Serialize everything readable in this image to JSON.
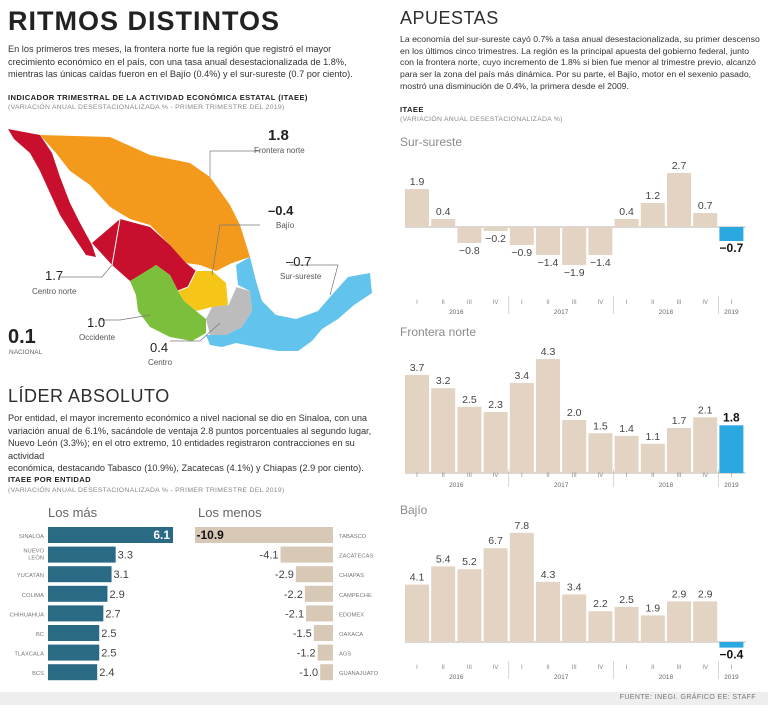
{
  "colors": {
    "bar_tan": "#e2d3c3",
    "bar_highlight": "#2aa8e0",
    "bar_lider": "#2a6a85",
    "bar_menos": "#d8c8b6",
    "region_norte": "#f39a1d",
    "region_centro_norte": "#c8102e",
    "region_occidente": "#7cbf3c",
    "region_bajio": "#f5c518",
    "region_centro": "#bcbcbc",
    "region_sur": "#62c3ec",
    "footer_band": "#eeeeee"
  },
  "ritmos": {
    "title": "RITMOS DISTINTOS",
    "text": [
      "En los primeros tres meses, la frontera norte fue la región que registró el mayor",
      "crecimiento económico en el país, con una tasa anual desestacionalizada de 1.8%,",
      "mientras las únicas caídas fueron en el Bajío (0.4%) y el sur-sureste (0.7 por ciento)."
    ],
    "indicator": "INDICADOR TRIMESTRAL DE LA ACTIVIDAD ECONÓMICA ESTATAL (ITAEE)",
    "note": "(VARIACIÓN ANUAL DESESTACIONALIZADA % - PRIMER TRIMESTRE DEL 2019)"
  },
  "map_labels": {
    "frontera_value": "1.8",
    "frontera_name": "Frontera norte",
    "bajio_value": "–0.4",
    "bajio_name": "Bajío",
    "sur_value": "–0.7",
    "sur_name": "Sur-sureste",
    "centronorte_value": "1.7",
    "centronorte_name": "Centro norte",
    "occidente_value": "1.0",
    "occidente_name": "Occidente",
    "centro_value": "0.4",
    "centro_name": "Centro",
    "nacional_value": "0.1",
    "nacional_name": "NACIONAL"
  },
  "lider": {
    "title": "LÍDER ABSOLUTO",
    "text": [
      "Por entidad, el mayor incremento económico a nivel nacional se dio en Sinaloa, con una",
      "variación anual de 6.1%, sacándole de ventaja 2.8 puntos porcentuales al segundo lugar,",
      "Nuevo León (3.3%); en el otro extremo, 10 entidades registraron contracciones en su actividad",
      "económica, destacando Tabasco (10.9%), Zacatecas (4.1%) y Chiapas (2.9 por ciento)."
    ],
    "itaee_label": "ITAEE POR ENTIDAD",
    "note": "(VARIACIÓN ANUAL DESESTACIONALIZADA % - PRIMER TRIMESTRE DEL 2019)",
    "mas_title": "Los más",
    "menos_title": "Los menos"
  },
  "apuestas": {
    "title": "APUESTAS",
    "text": [
      "La economía del sur-sureste cayó 0.7% a tasa anual desestacionalizada, su primer descenso",
      "en los últimos cinco trimestres. La región es la principal apuesta del gobierno federal, junto",
      "con la frontera norte, cuyo incremento de 1.8% si bien fue menor al trimestre previo, alcanzó",
      "para ser la zona del país más dinámica. Por su parte, el Bajío, motor en el sexenio pasado,",
      "mostró una disminución de 0.4%, la primera desde el 2009."
    ],
    "itaee_label": "ITAEE",
    "note": "(VARIACIÓN ANUAL DESESTACIONALIZADA %)"
  },
  "footer": "FUENTE: INEGI. GRÁFICO EE: STAFF",
  "chart_data": [
    {
      "type": "bar",
      "title": "Sur-sureste",
      "quarters": [
        "I",
        "II",
        "III",
        "IV",
        "I",
        "II",
        "III",
        "IV",
        "I",
        "II",
        "III",
        "IV",
        "I"
      ],
      "years": [
        "2016",
        "2017",
        "2018",
        "2019"
      ],
      "values": [
        1.9,
        0.4,
        -0.8,
        -0.2,
        -0.9,
        -1.4,
        -1.9,
        -1.4,
        0.4,
        1.2,
        2.7,
        0.7,
        -0.7
      ],
      "labels": [
        "1.9",
        "0.4",
        "−0.8",
        "−0.2",
        "−0.9",
        "−1.4",
        "−1.9",
        "−1.4",
        "0.4",
        "1.2",
        "2.7",
        "0.7",
        "−0.7"
      ]
    },
    {
      "type": "bar",
      "title": "Frontera norte",
      "quarters": [
        "I",
        "II",
        "III",
        "IV",
        "I",
        "II",
        "III",
        "IV",
        "I",
        "II",
        "III",
        "IV",
        "I"
      ],
      "years": [
        "2016",
        "2017",
        "2018",
        "2019"
      ],
      "values": [
        3.7,
        3.2,
        2.5,
        2.3,
        3.4,
        4.3,
        2.0,
        1.5,
        1.4,
        1.1,
        1.7,
        2.1,
        1.8
      ],
      "labels": [
        "3.7",
        "3.2",
        "2.5",
        "2.3",
        "3.4",
        "4.3",
        "2.0",
        "1.5",
        "1.4",
        "1.1",
        "1.7",
        "2.1",
        "1.8"
      ]
    },
    {
      "type": "bar",
      "title": "Bajío",
      "quarters": [
        "I",
        "II",
        "III",
        "IV",
        "I",
        "II",
        "III",
        "IV",
        "I",
        "II",
        "III",
        "IV",
        "I"
      ],
      "years": [
        "2016",
        "2017",
        "2018",
        "2019"
      ],
      "values": [
        4.1,
        5.4,
        5.2,
        6.7,
        7.8,
        4.3,
        3.4,
        2.2,
        2.5,
        1.9,
        2.9,
        2.9,
        -0.4
      ],
      "labels": [
        "4.1",
        "5.4",
        "5.2",
        "6.7",
        "7.8",
        "4.3",
        "3.4",
        "2.2",
        "2.5",
        "1.9",
        "2.9",
        "2.9",
        "−0.4"
      ]
    },
    {
      "type": "bar",
      "title": "Los más",
      "categories": [
        "SINALOA",
        "NUEVO LEÓN",
        "YUCATÁN",
        "COLIMA",
        "CHIHUAHUA",
        "BC",
        "TLAXCALA",
        "BCS"
      ],
      "values": [
        6.1,
        3.3,
        3.1,
        2.9,
        2.7,
        2.5,
        2.5,
        2.4
      ],
      "labels": [
        "6.1",
        "3.3",
        "3.1",
        "2.9",
        "2.7",
        "2.5",
        "2.5",
        "2.4"
      ]
    },
    {
      "type": "bar",
      "title": "Los menos",
      "categories": [
        "TABASCO",
        "ZACATECAS",
        "CHIAPAS",
        "CAMPECHE",
        "EDOMEX",
        "OAXACA",
        "AGS",
        "GUANAJUATO"
      ],
      "values": [
        -10.9,
        -4.1,
        -2.9,
        -2.2,
        -2.1,
        -1.5,
        -1.2,
        -1.0
      ],
      "labels": [
        "-10.9",
        "-4.1",
        "-2.9",
        "-2.2",
        "-2.1",
        "-1.5",
        "-1.2",
        "-1.0"
      ]
    }
  ]
}
